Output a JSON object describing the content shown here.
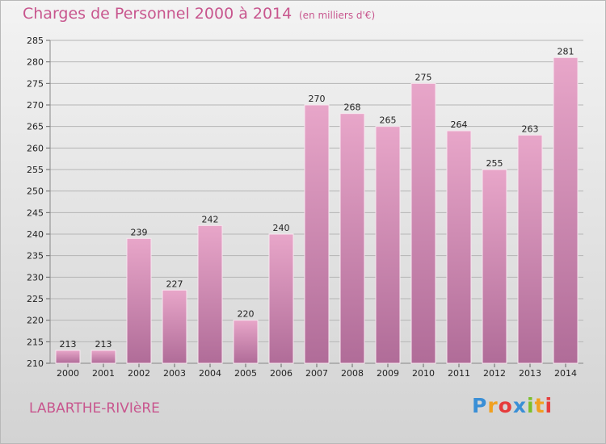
{
  "header": {
    "title": "Charges de Personnel 2000 à 2014",
    "subtitle": "(en milliers d'€)"
  },
  "footer": {
    "commune": "LABARTHE-RIVIèRE",
    "logo_text": "Proxiti",
    "logo_colors": [
      "#3a8fd6",
      "#f0a020",
      "#e63c3c",
      "#3a8fd6",
      "#7bbf2a",
      "#f0a020",
      "#e63c3c"
    ]
  },
  "colors": {
    "accent": "#c8568e",
    "bar_top": "#e8a6c9",
    "bar_bottom": "#b06c98"
  },
  "chart_data": {
    "type": "bar",
    "categories": [
      "2000",
      "2001",
      "2002",
      "2003",
      "2004",
      "2005",
      "2006",
      "2007",
      "2008",
      "2009",
      "2010",
      "2011",
      "2012",
      "2013",
      "2014"
    ],
    "values": [
      213,
      213,
      239,
      227,
      242,
      220,
      240,
      270,
      268,
      265,
      275,
      264,
      255,
      263,
      281
    ],
    "ylim": [
      210,
      285
    ],
    "yticks": [
      210,
      215,
      220,
      225,
      230,
      235,
      240,
      245,
      250,
      255,
      260,
      265,
      270,
      275,
      280,
      285
    ],
    "grid": true,
    "legend": "none"
  }
}
